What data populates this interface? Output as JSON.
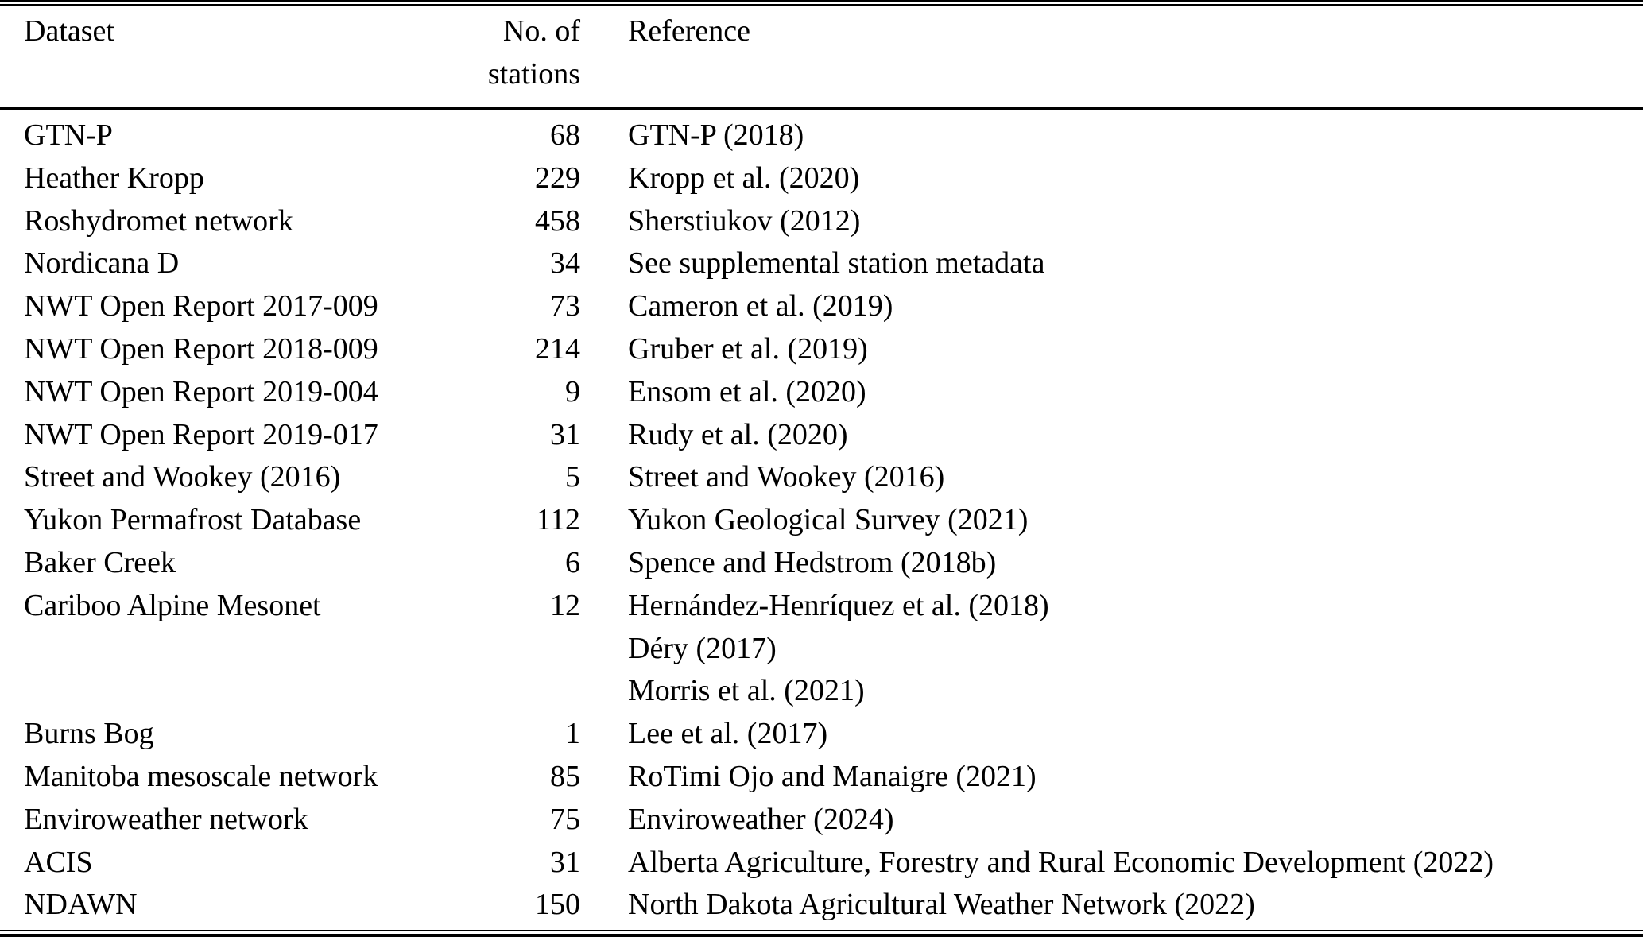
{
  "table": {
    "columns": {
      "dataset": "Dataset",
      "stations_line1": "No. of",
      "stations_line2": "stations",
      "reference": "Reference"
    },
    "rows": [
      {
        "dataset": "GTN-P",
        "stations": "68",
        "refs": [
          "GTN-P (2018)"
        ]
      },
      {
        "dataset": "Heather Kropp",
        "stations": "229",
        "refs": [
          "Kropp et al. (2020)"
        ]
      },
      {
        "dataset": "Roshydromet network",
        "stations": "458",
        "refs": [
          "Sherstiukov (2012)"
        ]
      },
      {
        "dataset": "Nordicana D",
        "stations": "34",
        "refs": [
          "See supplemental station metadata"
        ]
      },
      {
        "dataset": "NWT Open Report 2017-009",
        "stations": "73",
        "refs": [
          "Cameron et al. (2019)"
        ]
      },
      {
        "dataset": "NWT Open Report 2018-009",
        "stations": "214",
        "refs": [
          "Gruber et al. (2019)"
        ]
      },
      {
        "dataset": "NWT Open Report 2019-004",
        "stations": "9",
        "refs": [
          "Ensom et al. (2020)"
        ]
      },
      {
        "dataset": "NWT Open Report 2019-017",
        "stations": "31",
        "refs": [
          "Rudy et al. (2020)"
        ]
      },
      {
        "dataset": "Street and Wookey (2016)",
        "stations": "5",
        "refs": [
          "Street and Wookey (2016)"
        ]
      },
      {
        "dataset": "Yukon Permafrost Database",
        "stations": "112",
        "refs": [
          "Yukon Geological Survey (2021)"
        ]
      },
      {
        "dataset": "Baker Creek",
        "stations": "6",
        "refs": [
          "Spence and Hedstrom (2018b)"
        ]
      },
      {
        "dataset": "Cariboo Alpine Mesonet",
        "stations": "12",
        "refs": [
          "Hernández-Henríquez et al. (2018)",
          "Déry (2017)",
          "Morris et al. (2021)"
        ]
      },
      {
        "dataset": "Burns Bog",
        "stations": "1",
        "refs": [
          "Lee et al. (2017)"
        ]
      },
      {
        "dataset": "Manitoba mesoscale network",
        "stations": "85",
        "refs": [
          "RoTimi Ojo and Manaigre (2021)"
        ]
      },
      {
        "dataset": "Enviroweather network",
        "stations": "75",
        "refs": [
          "Enviroweather (2024)"
        ]
      },
      {
        "dataset": "ACIS",
        "stations": "31",
        "refs": [
          "Alberta Agriculture, Forestry and Rural Economic Development (2022)"
        ]
      },
      {
        "dataset": "NDAWN",
        "stations": "150",
        "refs": [
          "North Dakota Agricultural Weather Network (2022)"
        ]
      }
    ]
  },
  "colors": {
    "background": "#ffffff",
    "text": "#000000",
    "rule": "#000000"
  }
}
